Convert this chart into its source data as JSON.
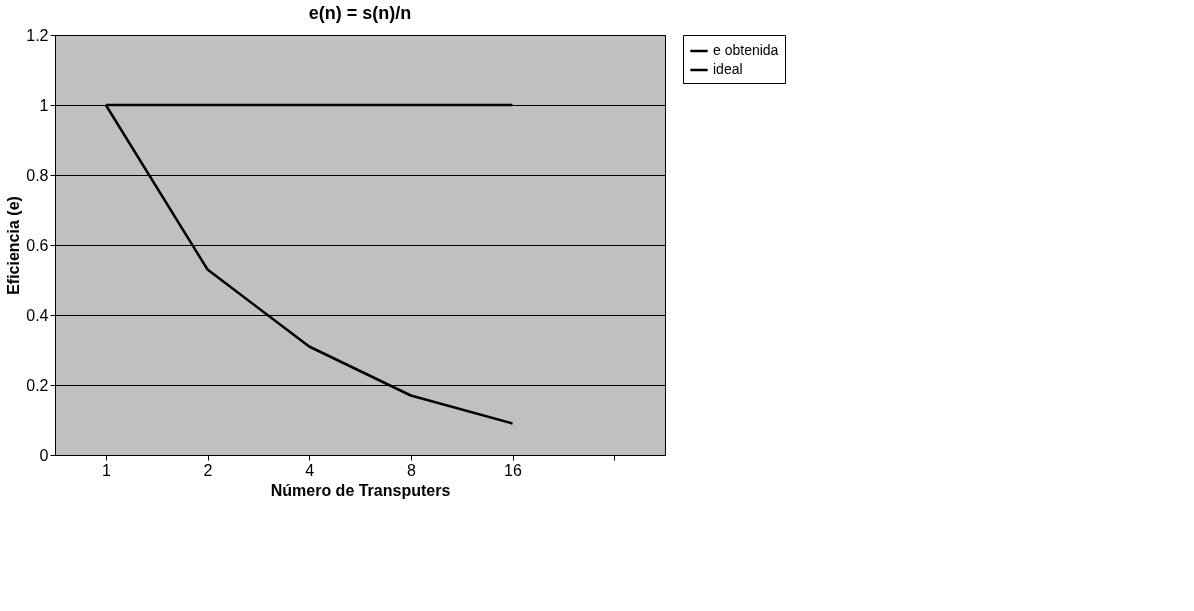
{
  "chart_data": {
    "type": "line",
    "title": "e(n) = s(n)/n",
    "xlabel": "Número de Transputers",
    "ylabel": "Eficiencia (e)",
    "categories": [
      "1",
      "2",
      "4",
      "8",
      "16",
      null
    ],
    "series": [
      {
        "name": "e obtenida",
        "color": "#000000",
        "values": [
          1,
          0.53,
          0.31,
          0.17,
          0.09,
          null
        ]
      },
      {
        "name": "ideal",
        "color": "#000000",
        "values": [
          1,
          1,
          1,
          1,
          1,
          null
        ]
      }
    ],
    "ylim": [
      0,
      1.2
    ],
    "yticks": [
      0,
      0.2,
      0.4,
      0.6,
      0.8,
      1,
      1.2
    ],
    "grid": "y",
    "legend": "right",
    "marker": "none",
    "line_style": "solid"
  }
}
